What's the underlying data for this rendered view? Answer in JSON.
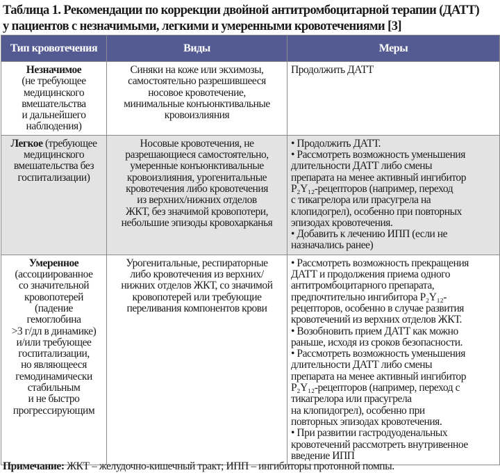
{
  "title": "Таблица 1. Рекомендации по коррекции двойной антитромбоцитарной терапии (ДАТТ)\nу пациентов с незначимыми, легкими и умеренными кровотечениями [3]",
  "columns": [
    "Тип кровотечения",
    "Виды",
    "Меры"
  ],
  "rows": [
    {
      "type_bold": "Незначимое",
      "type_rest": "(не требующее\nмедицинского\nвмешательства\nи дальнейшего\nнаблюдения)",
      "kinds": "Синяки на коже или экхимозы,\nсамостоятельно разрешившееся\nносовое кровотечение,\nминимальные конъюнктивальные\nкровоизлияния",
      "measures": "Продолжить ДАТТ"
    },
    {
      "type_bold": "Легкое",
      "type_rest": " (требующее\nмедицинского\nвмешательства без\nгоспитализации)",
      "kinds": "Носовые кровотечения, не\nразрешающиеся самостоятельно,\nумеренные конъюнктивальные\nкровоизлияния, урогенитальные\nкровотечения либо кровотечения\nиз верхних/нижних отделов\nЖКТ, без значимой кровопотери,\nнебольшие эпизоды кровохарканья",
      "measures": "• Продолжить ДАТТ.\n• Рассмотреть возможность уменьшения\nдлительности ДАТТ либо смены\nпрепарата на менее активный ингибитор\nP₂Y₁₂-рецепторов (например, переход\nс тикагрелора или прасугрела на\nклопидогрел), особенно при повторных\nэпизодах кровотечения.\n• Добавить к лечению ИПП (если не\nназначались ранее)"
    },
    {
      "type_bold": "Умеренное",
      "type_rest": "(ассоциированное\nсо значительной\nкровопотерей\n(падение\nгемоглобина\n>3 г/дл в динамике)\nи/или требующее\nгоспитализации,\nно являющееся\nгемодинамически\nстабильным\nи не быстро\nпрогрессирующим",
      "kinds": "Урогенитальные, респираторные\nлибо кровотечения из верхних/\nнижних отделов ЖКТ, со значимой\nкровопотерей или требующие\nпереливания компонентов крови",
      "measures": "• Рассмотреть возможность прекращения\nДАТТ и продолжения приема одного\nантитромбоцитарного препарата,\nпредпочтительно ингибитора P₂Y₁₂-\nрецепторов, особенно в случае развития\nкровотечений из верхних отделов ЖКТ.\n• Возобновить прием ДАТТ как можно\nраньше, исходя из сроков безопасности.\n• Рассмотреть возможность уменьшения\nдлительности ДАТТ либо смены\nпрепарата на менее активный ингибитор\nP₂Y₁₂-рецепторов (например, переход с\nтикагрелора или прасугрела\nна клопидогрел), особенно при\nповторных эпизодах кровотечения.\n• При развитии гастродуоденальных\nкровотечений рассмотреть внутривенное\nвведение ИПП"
    }
  ],
  "note": {
    "label": "Примечание:",
    "text": " ЖКТ – желудочно-кишечный тракт; ИПП – ингибиторы протонной помпы."
  },
  "colors": {
    "header_bg": "#535b92",
    "shaded_row": "#e3e3e3"
  }
}
